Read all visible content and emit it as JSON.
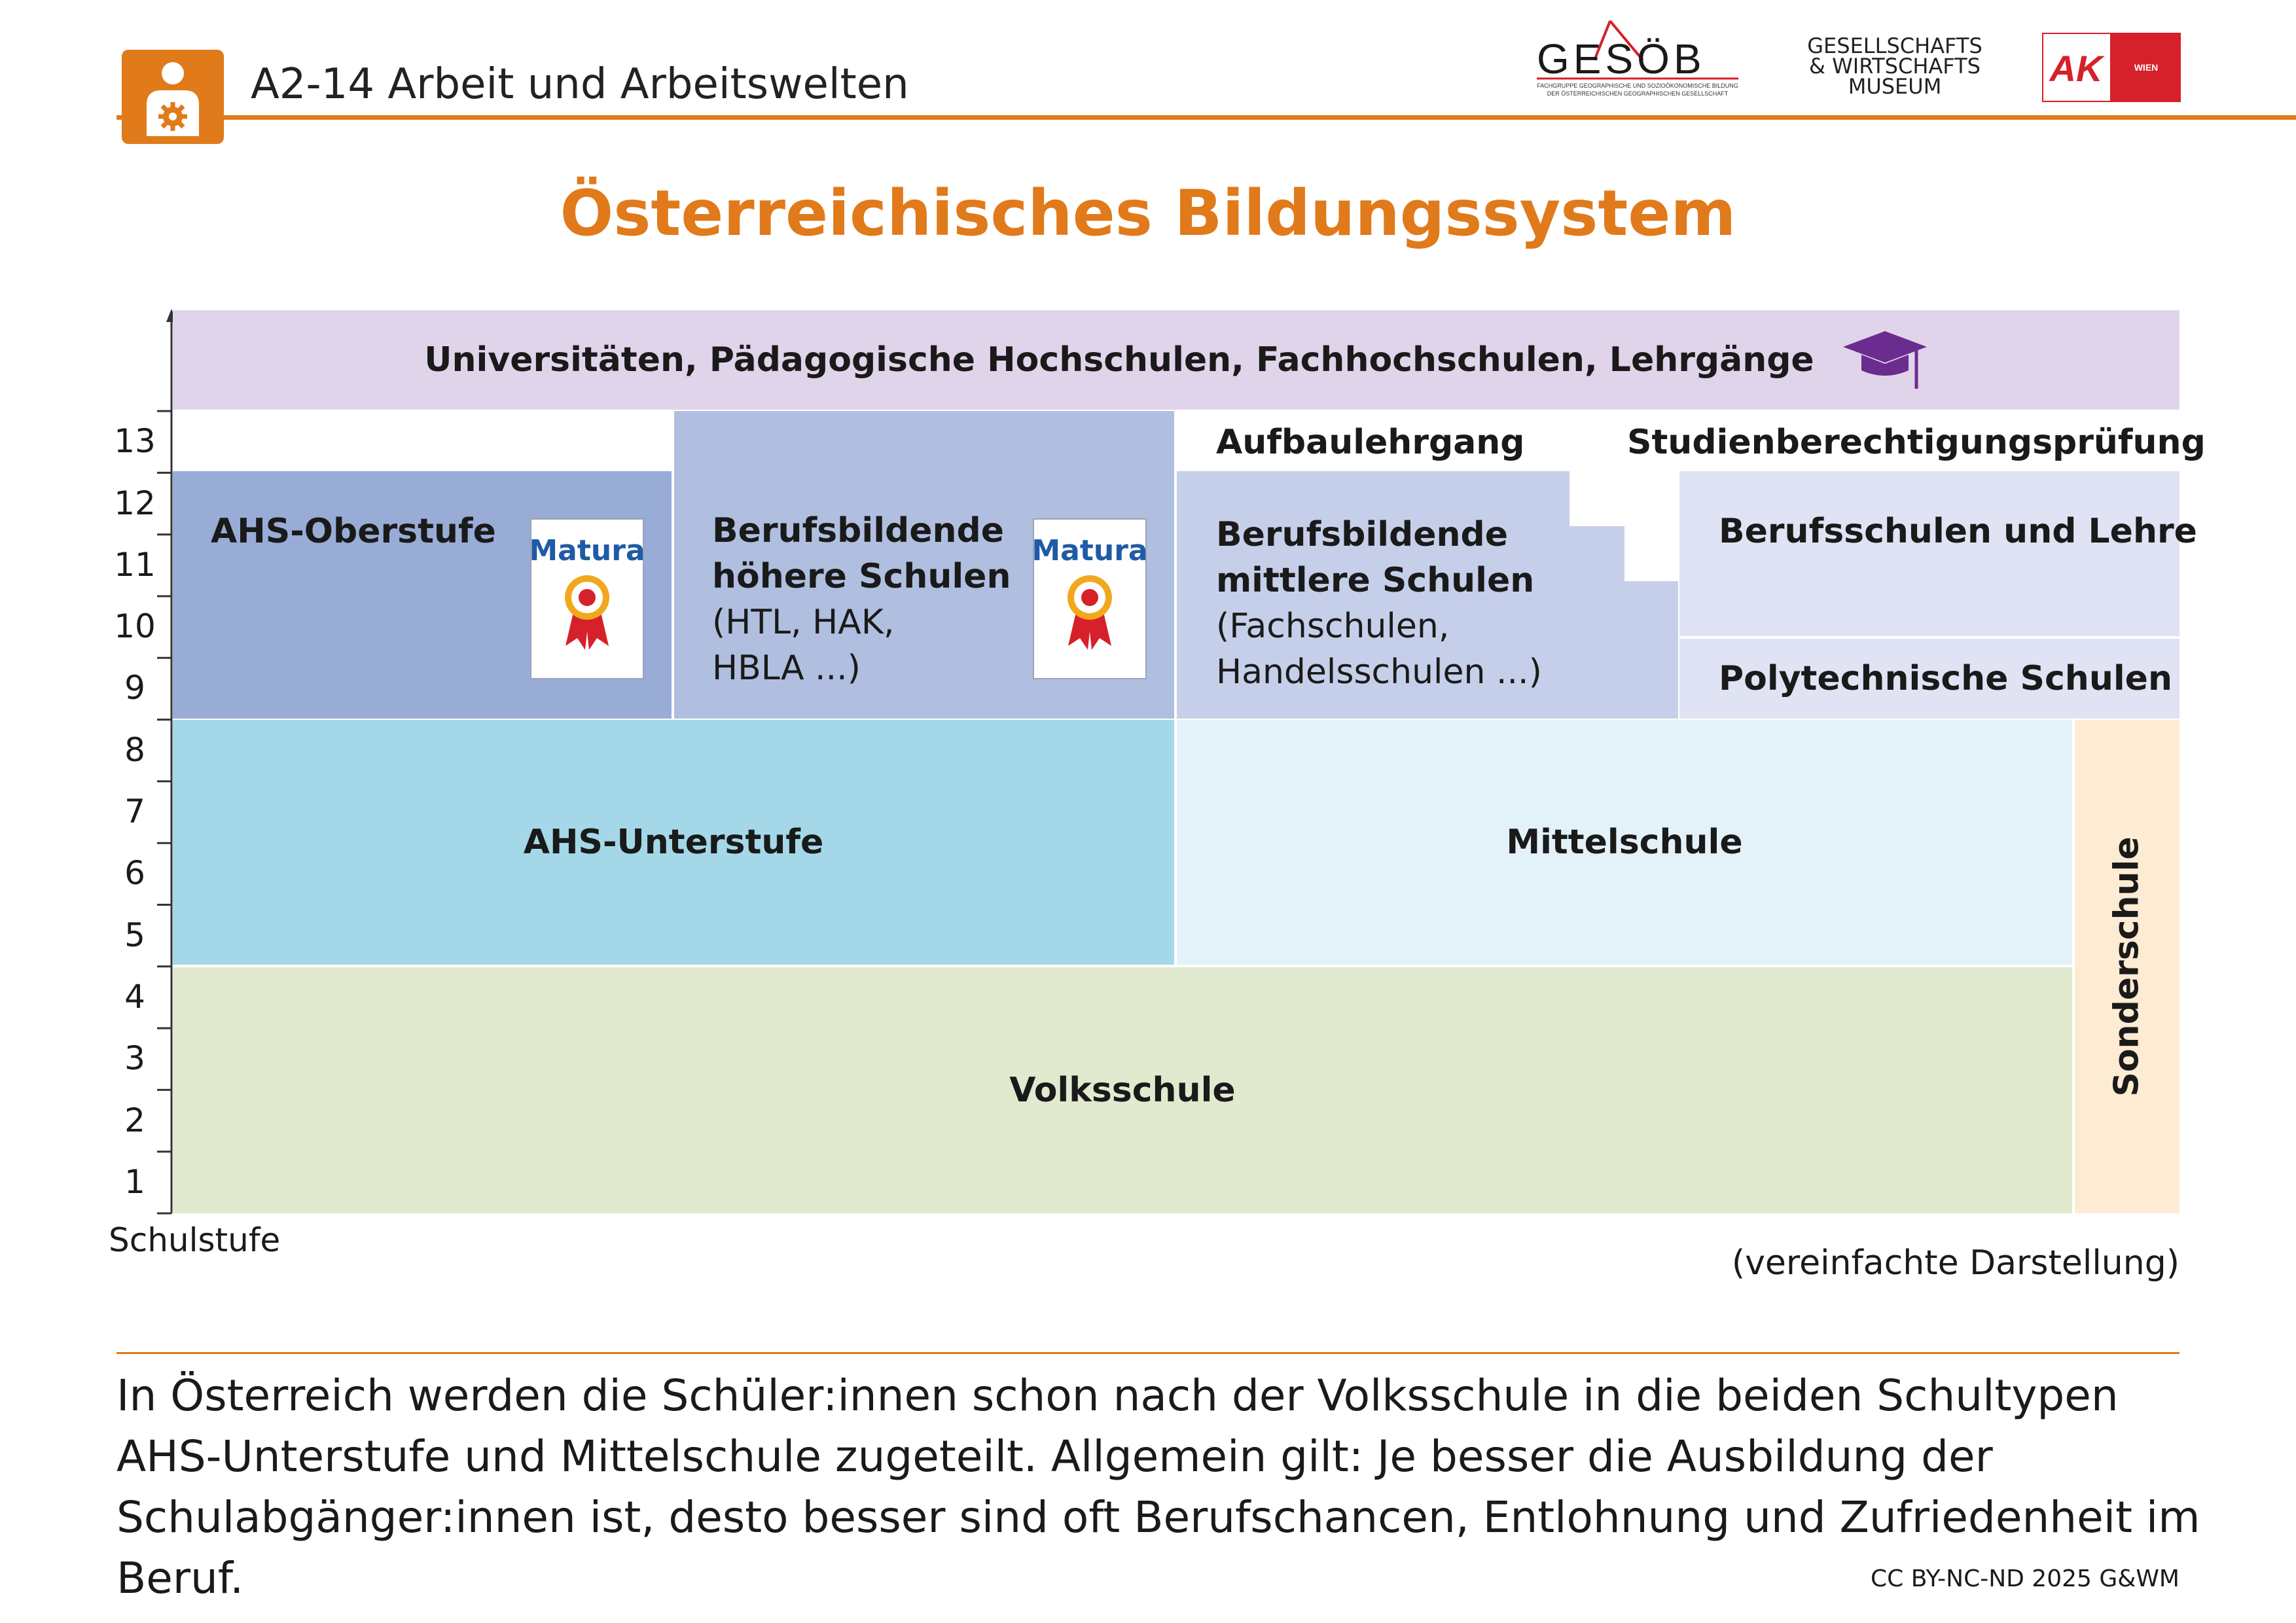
{
  "header": {
    "title": "A2-14 Arbeit und Arbeitswelten",
    "logo_gesoeb": {
      "name": "GESÖB",
      "tagline_1": "FACHGRUPPE GEOGRAPHISCHE UND SOZIOÖKONOMISCHE BILDUNG",
      "tagline_2": "DER ÖSTERREICHISCHEN GEOGRAPHISCHEN GESELLSCHAFT"
    },
    "logo_gwm": {
      "line1": "GESELLSCHAFTS",
      "line2": "& WIRTSCHAFTS",
      "line3": "MUSEUM"
    },
    "logo_ak": {
      "mark": "AK",
      "city": "WIEN"
    },
    "icon": "person-gear-icon",
    "accent_color": "#e07a1a"
  },
  "title": "Österreichisches Bildungssystem",
  "diagram": {
    "axis_label": "Schulstufe",
    "levels": [
      "1",
      "2",
      "3",
      "4",
      "5",
      "6",
      "7",
      "8",
      "9",
      "10",
      "11",
      "12",
      "13"
    ],
    "blocks": {
      "university": {
        "label": "Universitäten, Pädagogische Hochschulen, Fachhochschulen, Lehrgänge",
        "icon": "graduation-cap-icon",
        "color": "#e0d4ea"
      },
      "ahs_oberstufe": {
        "label": "AHS-Oberstufe",
        "badge": "Matura",
        "color": "#98acd6"
      },
      "bhs": {
        "label_1": "Berufsbildende",
        "label_2": "höhere Schulen",
        "sub_1": "(HTL, HAK,",
        "sub_2": "HBLA ...)",
        "badge": "Matura",
        "color": "#b0bfe0"
      },
      "aufbaulehrgang": {
        "label": "Aufbaulehrgang"
      },
      "studienberechtigung": {
        "label": "Studienberechtigungsprüfung"
      },
      "bms": {
        "label_1": "Berufsbildende",
        "label_2": "mittlere Schulen",
        "sub_1": "(Fachschulen,",
        "sub_2": "Handelsschulen ...)",
        "color": "#c6cfea"
      },
      "berufsschulen": {
        "label": "Berufsschulen und Lehre",
        "color": "#dfe3f3"
      },
      "polytechnische": {
        "label": "Polytechnische Schulen",
        "color": "#dfe3f3"
      },
      "ahs_unterstufe": {
        "label": "AHS-Unterstufe",
        "color": "#a4d8e8"
      },
      "mittelschule": {
        "label": "Mittelschule",
        "color": "#e3f2f8"
      },
      "volksschule": {
        "label": "Volksschule",
        "color": "#e1e9cf"
      },
      "sonderschule": {
        "label": "Sonderschule",
        "color": "#fdebd3"
      }
    },
    "note": "(vereinfachte Darstellung)"
  },
  "body_text": "In Österreich werden die Schüler:innen schon nach der Volksschule in die beiden Schultypen AHS-Unterstufe und Mittelschule zugeteilt. Allgemein gilt: Je besser die Ausbildung der Schulabgänger:innen ist, desto besser sind oft Berufschancen, Entlohnung und Zufriedenheit im Beruf.",
  "credit": "CC BY-NC-ND 2025 G&WM"
}
